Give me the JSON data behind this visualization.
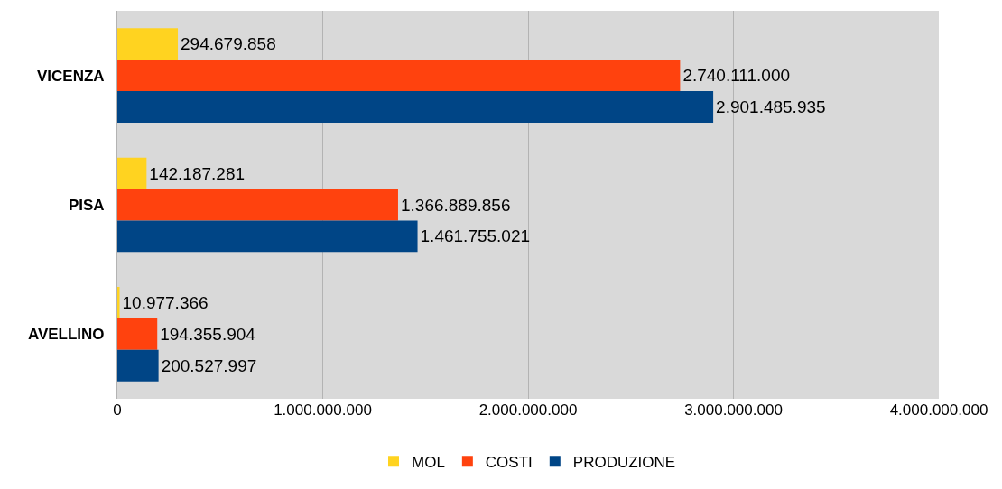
{
  "chart_data": {
    "type": "bar",
    "orientation": "horizontal",
    "categories": [
      "VICENZA",
      "PISA",
      "AVELLINO"
    ],
    "series": [
      {
        "name": "MOL",
        "color": "#ffd320",
        "values": [
          294679858,
          142187281,
          10977366
        ],
        "value_labels": [
          "294.679.858",
          "142.187.281",
          "10.977.366"
        ]
      },
      {
        "name": "COSTI",
        "color": "#ff420e",
        "values": [
          2740111000,
          1366889856,
          194355904
        ],
        "value_labels": [
          "2.740.111.000",
          "1.366.889.856",
          "194.355.904"
        ]
      },
      {
        "name": "PRODUZIONE",
        "color": "#004586",
        "values": [
          2901485935,
          1461755021,
          200527997
        ],
        "value_labels": [
          "2.901.485.935",
          "1.461.755.021",
          "200.527.997"
        ]
      }
    ],
    "xlim": [
      0,
      4000000000
    ],
    "xticks": [
      0,
      {
        "value": 1000000000,
        "label": "1.000.000.000"
      },
      {
        "value": 2000000000,
        "label": "2.000.000.000"
      },
      {
        "value": 3000000000,
        "label": "3.000.000.000"
      },
      {
        "value": 4000000000,
        "label": "4.000.000.000"
      }
    ],
    "grid": "x",
    "legend": "bottom"
  }
}
